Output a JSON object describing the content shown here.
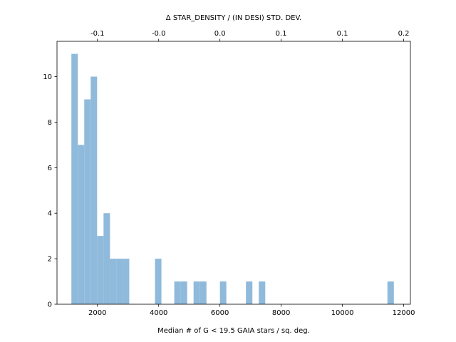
{
  "chart_data": {
    "type": "bar",
    "title": "",
    "xlabel": "Median # of G < 19.5 GAIA stars / sq. deg.",
    "ylabel": "",
    "top_xlabel": "Δ STAR_DENSITY / (IN DESI) STD. DEV.",
    "xlim": [
      680,
      12220
    ],
    "ylim": [
      0,
      11.55
    ],
    "bar_color": "#8fbadb",
    "bin_width": 210,
    "bins": [
      {
        "x0": 1150,
        "value": 11
      },
      {
        "x0": 1360,
        "value": 7
      },
      {
        "x0": 1570,
        "value": 9
      },
      {
        "x0": 1780,
        "value": 10
      },
      {
        "x0": 1990,
        "value": 3
      },
      {
        "x0": 2200,
        "value": 4
      },
      {
        "x0": 2410,
        "value": 2
      },
      {
        "x0": 2620,
        "value": 2
      },
      {
        "x0": 2830,
        "value": 2
      },
      {
        "x0": 3880,
        "value": 2
      },
      {
        "x0": 4510,
        "value": 1
      },
      {
        "x0": 4720,
        "value": 1
      },
      {
        "x0": 5140,
        "value": 1
      },
      {
        "x0": 5350,
        "value": 1
      },
      {
        "x0": 6000,
        "value": 1
      },
      {
        "x0": 6850,
        "value": 1
      },
      {
        "x0": 7270,
        "value": 1
      },
      {
        "x0": 11470,
        "value": 1
      }
    ],
    "x_ticks": [
      {
        "value": 2000,
        "label": "2000"
      },
      {
        "value": 4000,
        "label": "4000"
      },
      {
        "value": 6000,
        "label": "6000"
      },
      {
        "value": 8000,
        "label": "8000"
      },
      {
        "value": 10000,
        "label": "10000"
      },
      {
        "value": 12000,
        "label": "12000"
      }
    ],
    "y_ticks": [
      {
        "value": 0,
        "label": "0"
      },
      {
        "value": 2,
        "label": "2"
      },
      {
        "value": 4,
        "label": "4"
      },
      {
        "value": 6,
        "label": "6"
      },
      {
        "value": 8,
        "label": "8"
      },
      {
        "value": 10,
        "label": "10"
      }
    ],
    "top_ticks": [
      {
        "value": 2000,
        "label": "-0.1"
      },
      {
        "value": 4000,
        "label": "-0.0"
      },
      {
        "value": 6000,
        "label": "0.0"
      },
      {
        "value": 8000,
        "label": "0.1"
      },
      {
        "value": 10000,
        "label": "0.1"
      },
      {
        "value": 12000,
        "label": "0.2"
      }
    ]
  }
}
